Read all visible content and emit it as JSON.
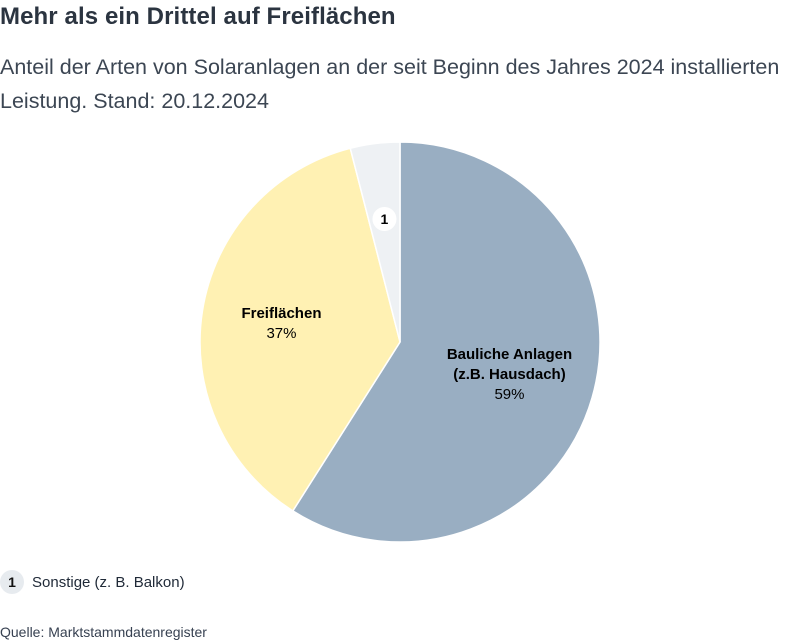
{
  "title": "Mehr als ein Drittel auf Freiflächen",
  "subtitle": "Anteil der Arten von Solaranlagen an der seit Beginn des Jahres 2024 installierten Leistung. Stand: 20.12.2024",
  "chart_data": {
    "type": "pie",
    "title": "Mehr als ein Drittel auf Freiflächen",
    "subtitle": "Anteil der Arten von Solaranlagen an der seit Beginn des Jahres 2024 installierten Leistung. Stand: 20.12.2024",
    "slices": [
      {
        "label": "Bauliche Anlagen (z.B. Hausdach)",
        "label_lines": [
          "Bauliche Anlagen",
          "(z.B. Hausdach)"
        ],
        "value": 59,
        "value_label": "59%",
        "color": "#99aec2"
      },
      {
        "label": "Freiflächen",
        "label_lines": [
          "Freiflächen"
        ],
        "value": 37,
        "value_label": "37%",
        "color": "#fff1b3"
      },
      {
        "label": "Sonstige (z. B. Balkon)",
        "label_lines": [],
        "value": 4,
        "value_label": "",
        "color": "#eef1f4",
        "footnote_marker": "1"
      }
    ],
    "start_angle_deg": 0,
    "direction": "clockwise"
  },
  "footnote": {
    "marker": "1",
    "text": "Sonstige (z. B. Balkon)"
  },
  "source": "Quelle: Marktstammdatenregister"
}
